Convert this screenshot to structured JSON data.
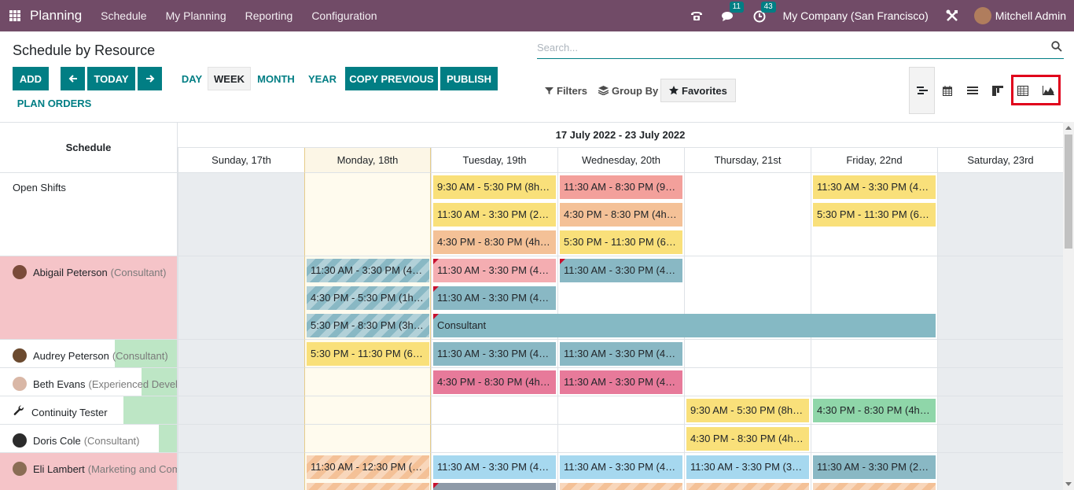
{
  "navbar": {
    "app_title": "Planning",
    "menu": [
      "Schedule",
      "My Planning",
      "Reporting",
      "Configuration"
    ],
    "chat_count": "11",
    "activity_count": "43",
    "company": "My Company (San Francisco)",
    "user": "Mitchell Admin"
  },
  "page": {
    "title": "Schedule by Resource",
    "add_label": "ADD",
    "today_label": "TODAY",
    "scales": [
      "DAY",
      "WEEK",
      "MONTH",
      "YEAR"
    ],
    "active_scale": "WEEK",
    "copy_previous_label": "COPY PREVIOUS",
    "publish_label": "PUBLISH",
    "plan_orders_label": "PLAN ORDERS"
  },
  "search": {
    "placeholder": "Search...",
    "filters_label": "Filters",
    "group_by_label": "Group By",
    "favorites_label": "Favorites"
  },
  "views": [
    "gantt-icon",
    "calendar-icon",
    "list-icon",
    "kanban-icon",
    "pivot-icon",
    "graph-icon"
  ],
  "gantt": {
    "header_left": "Schedule",
    "range_title": "17 July 2022 - 23 July 2022",
    "days": [
      "Sunday, 17th",
      "Monday, 18th",
      "Tuesday, 19th",
      "Wednesday, 20th",
      "Thursday, 21st",
      "Friday, 22nd",
      "Saturday, 23rd"
    ],
    "today_index": 1,
    "rows": [
      {
        "name": "Open Shifts",
        "role": "",
        "lines": 3,
        "progress": 0,
        "label_bg": "#ffffff",
        "avatar": "",
        "pills": [
          {
            "day": 2,
            "span": 1,
            "line": 0,
            "text": "9:30 AM - 5:30 PM (8h) ...",
            "color": "#f9e07a"
          },
          {
            "day": 2,
            "span": 1,
            "line": 1,
            "text": "11:30 AM - 3:30 PM (2h...",
            "color": "#f9e07a"
          },
          {
            "day": 2,
            "span": 1,
            "line": 2,
            "text": "4:30 PM - 8:30 PM (4h) -...",
            "color": "#f4c197"
          },
          {
            "day": 3,
            "span": 1,
            "line": 0,
            "text": "11:30 AM - 8:30 PM (9h...",
            "color": "#f3a09b"
          },
          {
            "day": 3,
            "span": 1,
            "line": 1,
            "text": "4:30 PM - 8:30 PM (4h) -...",
            "color": "#f4c197"
          },
          {
            "day": 3,
            "span": 1,
            "line": 2,
            "text": "5:30 PM - 11:30 PM (6h...",
            "color": "#f9e07a"
          },
          {
            "day": 5,
            "span": 1,
            "line": 0,
            "text": "11:30 AM - 3:30 PM (4h...",
            "color": "#f9e07a"
          },
          {
            "day": 5,
            "span": 1,
            "line": 1,
            "text": "5:30 PM - 11:30 PM (6h...",
            "color": "#f9e07a"
          }
        ]
      },
      {
        "name": "Abigail Peterson",
        "role": "(Consultant)",
        "lines": 3,
        "progress": 1,
        "label_bg": "#f5c4c8",
        "avatar": "#7a4b3a",
        "pills": [
          {
            "day": 1,
            "span": 1,
            "line": 0,
            "text": "11:30 AM - 3:30 PM (4h...",
            "color": "#89b8c4",
            "striped": true
          },
          {
            "day": 1,
            "span": 1,
            "line": 1,
            "text": "4:30 PM - 5:30 PM (1h) -...",
            "color": "#89b8c4",
            "striped": true
          },
          {
            "day": 1,
            "span": 1,
            "line": 2,
            "text": "5:30 PM - 8:30 PM (3h) -...",
            "color": "#89b8c4",
            "striped": true
          },
          {
            "day": 2,
            "span": 1,
            "line": 0,
            "text": "11:30 AM - 3:30 PM (4h...",
            "color": "#f4adb1",
            "corner": true
          },
          {
            "day": 2,
            "span": 1,
            "line": 1,
            "text": "11:30 AM - 3:30 PM (4h...",
            "color": "#89b8c4",
            "corner": true
          },
          {
            "day": 2,
            "span": 4,
            "line": 2,
            "text": "Consultant",
            "color": "#85b9c4",
            "corner": true
          },
          {
            "day": 3,
            "span": 1,
            "line": 0,
            "text": "11:30 AM - 3:30 PM (4h...",
            "color": "#89b8c4",
            "corner": true
          }
        ]
      },
      {
        "name": "Audrey Peterson",
        "role": "(Consultant)",
        "lines": 1,
        "progress": 0.35,
        "label_bg": "#ffffff",
        "avatar": "#6b4a2f",
        "pills": [
          {
            "day": 1,
            "span": 1,
            "line": 0,
            "text": "5:30 PM - 11:30 PM (6h...",
            "color": "#f9e07a"
          },
          {
            "day": 2,
            "span": 1,
            "line": 0,
            "text": "11:30 AM - 3:30 PM (4h...",
            "color": "#89b8c4"
          },
          {
            "day": 3,
            "span": 1,
            "line": 0,
            "text": "11:30 AM - 3:30 PM (4h...",
            "color": "#89b8c4"
          }
        ]
      },
      {
        "name": "Beth Evans",
        "role": "(Experienced Develo",
        "lines": 1,
        "progress": 0.2,
        "label_bg": "#ffffff",
        "avatar": "#d9b7a6",
        "pills": [
          {
            "day": 2,
            "span": 1,
            "line": 0,
            "text": "4:30 PM - 8:30 PM (4h) -...",
            "color": "#e77a9a"
          },
          {
            "day": 3,
            "span": 1,
            "line": 0,
            "text": "11:30 AM - 3:30 PM (4h...",
            "color": "#e77a9a"
          }
        ]
      },
      {
        "name": "Continuity Tester",
        "role": "",
        "lines": 1,
        "progress": 0.3,
        "label_bg": "#ffffff",
        "avatar": "",
        "pills": [
          {
            "day": 4,
            "span": 1,
            "line": 0,
            "text": "9:30 AM - 5:30 PM (8h) ...",
            "color": "#f9e07a"
          },
          {
            "day": 5,
            "span": 1,
            "line": 0,
            "text": "4:30 PM - 8:30 PM (4h) -...",
            "color": "#8fd6a9"
          }
        ]
      },
      {
        "name": "Doris Cole",
        "role": "(Consultant)",
        "lines": 1,
        "progress": 0.1,
        "label_bg": "#ffffff",
        "avatar": "#2b2b2b",
        "pills": [
          {
            "day": 4,
            "span": 1,
            "line": 0,
            "text": "4:30 PM - 8:30 PM (4h) -...",
            "color": "#f9e07a"
          }
        ]
      },
      {
        "name": "Eli Lambert",
        "role": "(Marketing and Com",
        "lines": 2,
        "progress": 1,
        "label_bg": "#f5c4c8",
        "avatar": "#8a6d55",
        "pills": [
          {
            "day": 1,
            "span": 1,
            "line": 0,
            "text": "11:30 AM - 12:30 PM (1...",
            "color": "#f4c197",
            "striped": true
          },
          {
            "day": 1,
            "span": 1,
            "line": 1,
            "text": "",
            "color": "#f4c197",
            "striped": true
          },
          {
            "day": 2,
            "span": 1,
            "line": 0,
            "text": "11:30 AM - 3:30 PM (4h...",
            "color": "#a6d8ef"
          },
          {
            "day": 2,
            "span": 1,
            "line": 1,
            "text": "",
            "color": "#8e9aa8",
            "corner": true
          },
          {
            "day": 3,
            "span": 1,
            "line": 0,
            "text": "11:30 AM - 3:30 PM (4h...",
            "color": "#a6d8ef"
          },
          {
            "day": 3,
            "span": 1,
            "line": 1,
            "text": "",
            "color": "#f4c197",
            "striped": true
          },
          {
            "day": 4,
            "span": 1,
            "line": 0,
            "text": "11:30 AM - 3:30 PM (3h...",
            "color": "#a6d8ef"
          },
          {
            "day": 4,
            "span": 1,
            "line": 1,
            "text": "",
            "color": "#f4c197",
            "striped": true
          },
          {
            "day": 5,
            "span": 1,
            "line": 0,
            "text": "11:30 AM - 3:30 PM (2h...",
            "color": "#89b8c4"
          },
          {
            "day": 5,
            "span": 1,
            "line": 1,
            "text": "",
            "color": "#f4c197",
            "striped": true
          }
        ]
      }
    ]
  },
  "colors": {
    "brand": "#714B67",
    "primary": "#017e84",
    "progress_ok": "#bde6c5",
    "progress_over": "#f5c4c8",
    "highlight": "#e0001b"
  }
}
